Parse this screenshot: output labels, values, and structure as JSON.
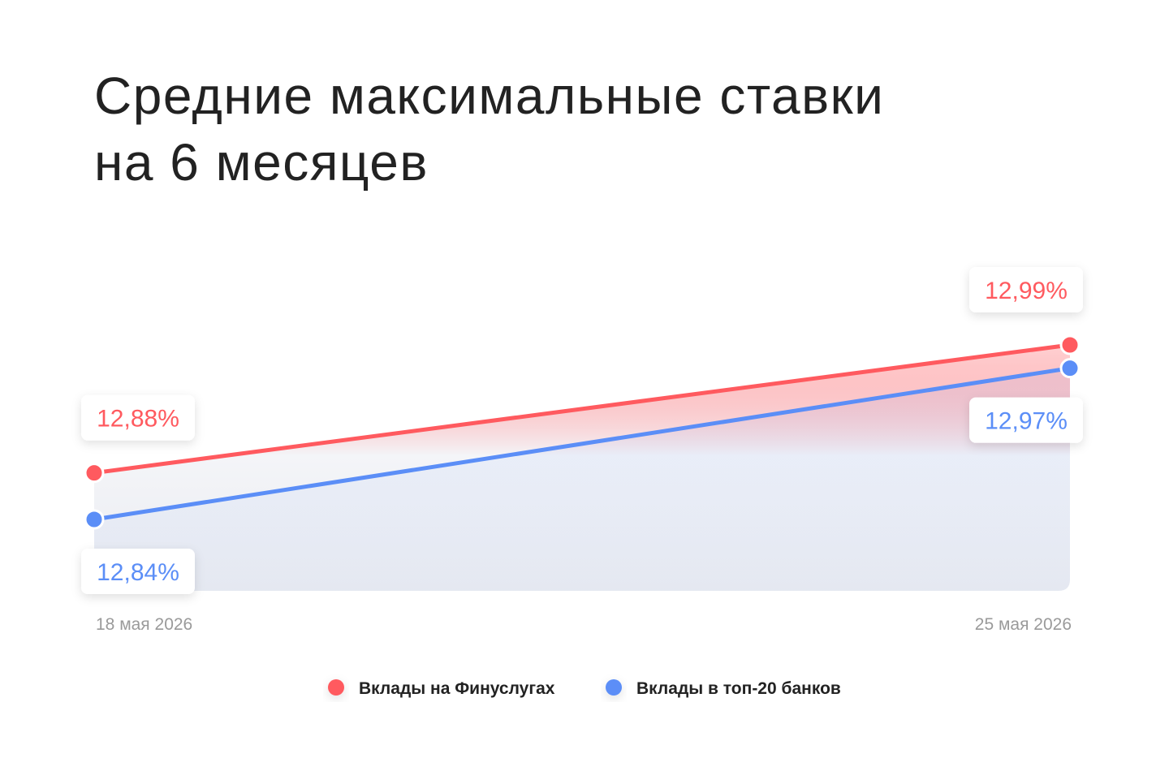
{
  "chart_data": {
    "type": "line",
    "title": [
      "Средние максимальные ставки",
      "на 6 месяцев"
    ],
    "categories": [
      "18 мая 2026",
      "25 мая 2026"
    ],
    "series": [
      {
        "name": "Вклады на Финуслугах",
        "color": "#ff5a5f",
        "values": [
          12.88,
          12.99
        ],
        "value_labels": [
          "12,88%",
          "12,99%"
        ]
      },
      {
        "name": "Вклады в топ-20 банков",
        "color": "#5b8ef7",
        "values": [
          12.84,
          12.97
        ],
        "value_labels": [
          "12,84%",
          "12,97%"
        ]
      }
    ]
  }
}
